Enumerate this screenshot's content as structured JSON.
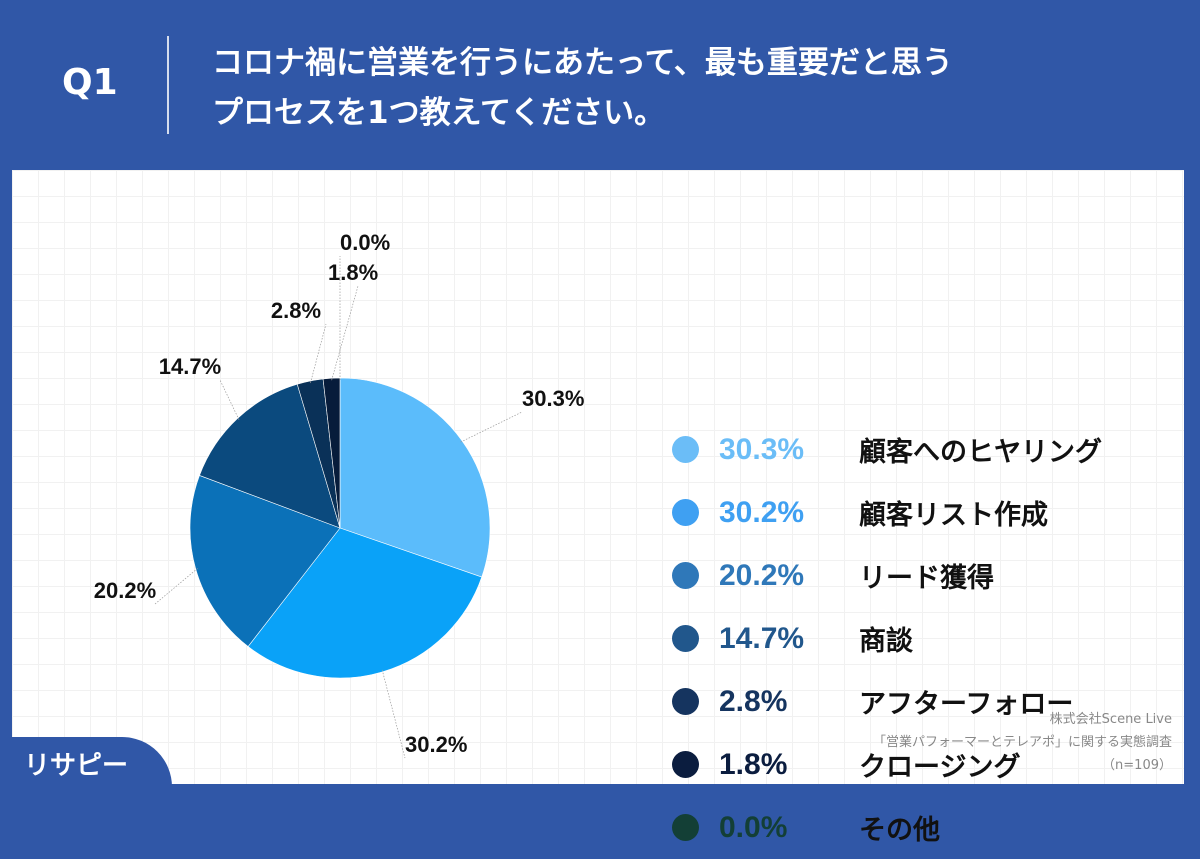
{
  "header": {
    "q": "Q1",
    "title_line1": "コロナ禍に営業を行うにあたって、最も重要だと思う",
    "title_line2": "プロセスを1つ教えてください。"
  },
  "chart_data": {
    "type": "pie",
    "start": "top",
    "direction": "clockwise",
    "categories": [
      "顧客へのヒヤリング",
      "顧客リスト作成",
      "リード獲得",
      "商談",
      "アフターフォロー",
      "クロージング",
      "その他"
    ],
    "values": [
      30.3,
      30.2,
      20.2,
      14.7,
      2.8,
      1.8,
      0.0
    ],
    "labels": [
      "30.3%",
      "30.2%",
      "20.2%",
      "14.7%",
      "2.8%",
      "1.8%",
      "0.0%"
    ],
    "slice_colors": [
      "#5bbcfb",
      "#0aa2f8",
      "#0b71b8",
      "#0b4a7e",
      "#0a3158",
      "#071c3b",
      "#133f36"
    ],
    "legend_colors": [
      "#6bbdf7",
      "#3fa0f2",
      "#2f78b9",
      "#21578c",
      "#15345f",
      "#0b1d3f",
      "#133f36"
    ],
    "legend_position": "right"
  },
  "source": {
    "line1": "株式会社Scene Live",
    "line2": "「営業パフォーマーとテレアポ」に関する実態調査",
    "line3": "（n=109）"
  },
  "logo": "リサピー"
}
